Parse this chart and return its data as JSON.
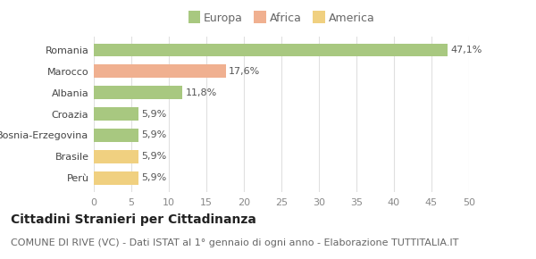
{
  "categories": [
    "Perù",
    "Brasile",
    "Bosnia-Erzegovina",
    "Croazia",
    "Albania",
    "Marocco",
    "Romania"
  ],
  "values": [
    5.9,
    5.9,
    5.9,
    5.9,
    11.8,
    17.6,
    47.1
  ],
  "labels": [
    "5,9%",
    "5,9%",
    "5,9%",
    "5,9%",
    "11,8%",
    "17,6%",
    "47,1%"
  ],
  "colors": [
    "#f0d080",
    "#f0d080",
    "#a8c880",
    "#a8c880",
    "#a8c880",
    "#f0b090",
    "#a8c880"
  ],
  "legend": [
    {
      "label": "Europa",
      "color": "#a8c880"
    },
    {
      "label": "Africa",
      "color": "#f0b090"
    },
    {
      "label": "America",
      "color": "#f0d080"
    }
  ],
  "xlim": [
    0,
    50
  ],
  "xticks": [
    0,
    5,
    10,
    15,
    20,
    25,
    30,
    35,
    40,
    45,
    50
  ],
  "title": "Cittadini Stranieri per Cittadinanza",
  "subtitle": "COMUNE DI RIVE (VC) - Dati ISTAT al 1° gennaio di ogni anno - Elaborazione TUTTITALIA.IT",
  "background_color": "#ffffff",
  "grid_color": "#e0e0e0",
  "title_fontsize": 10,
  "subtitle_fontsize": 8,
  "label_fontsize": 8,
  "tick_fontsize": 8,
  "legend_fontsize": 9,
  "bar_height": 0.62
}
